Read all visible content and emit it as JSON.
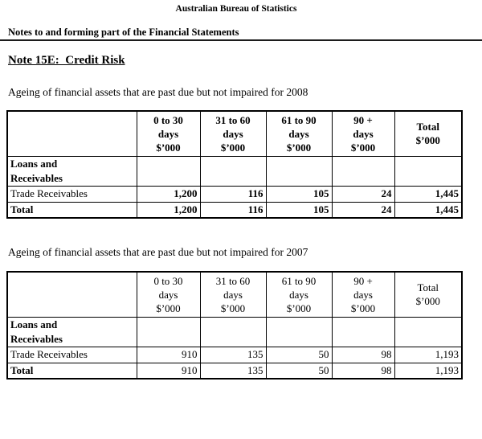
{
  "page": {
    "org_title": "Australian Bureau of Statistics",
    "doc_header": "Notes to and forming part of the Financial Statements",
    "note_title": "Note 15E:  Credit Risk"
  },
  "sections": [
    {
      "caption": "Ageing of financial assets that are past due but not impaired for 2008",
      "headers": [
        "",
        "0 to 30\ndays\n$’000",
        "31 to 60\ndays\n$’000",
        "61 to 90\ndays\n$’000",
        "90 +\ndays\n$’000",
        "Total\n$’000"
      ],
      "rows": [
        {
          "label": "Loans and\nReceivables",
          "values": [
            "",
            "",
            "",
            "",
            ""
          ]
        },
        {
          "label": "Trade Receivables",
          "values": [
            "1,200",
            "116",
            "105",
            "24",
            "1,445"
          ]
        },
        {
          "label": "Total",
          "values": [
            "1,200",
            "116",
            "105",
            "24",
            "1,445"
          ]
        }
      ]
    },
    {
      "caption": "Ageing of financial assets that are past due but not impaired for 2007",
      "headers": [
        "",
        "0 to 30\ndays\n$’000",
        "31 to 60\ndays\n$’000",
        "61 to 90\ndays\n$’000",
        "90 +\ndays\n$’000",
        "Total\n$’000"
      ],
      "rows": [
        {
          "label": "Loans and\nReceivables",
          "values": [
            "",
            "",
            "",
            "",
            ""
          ]
        },
        {
          "label": "Trade Receivables",
          "values": [
            "910",
            "135",
            "50",
            "98",
            "1,193"
          ]
        },
        {
          "label": "Total",
          "values": [
            "910",
            "135",
            "50",
            "98",
            "1,193"
          ]
        }
      ]
    }
  ]
}
